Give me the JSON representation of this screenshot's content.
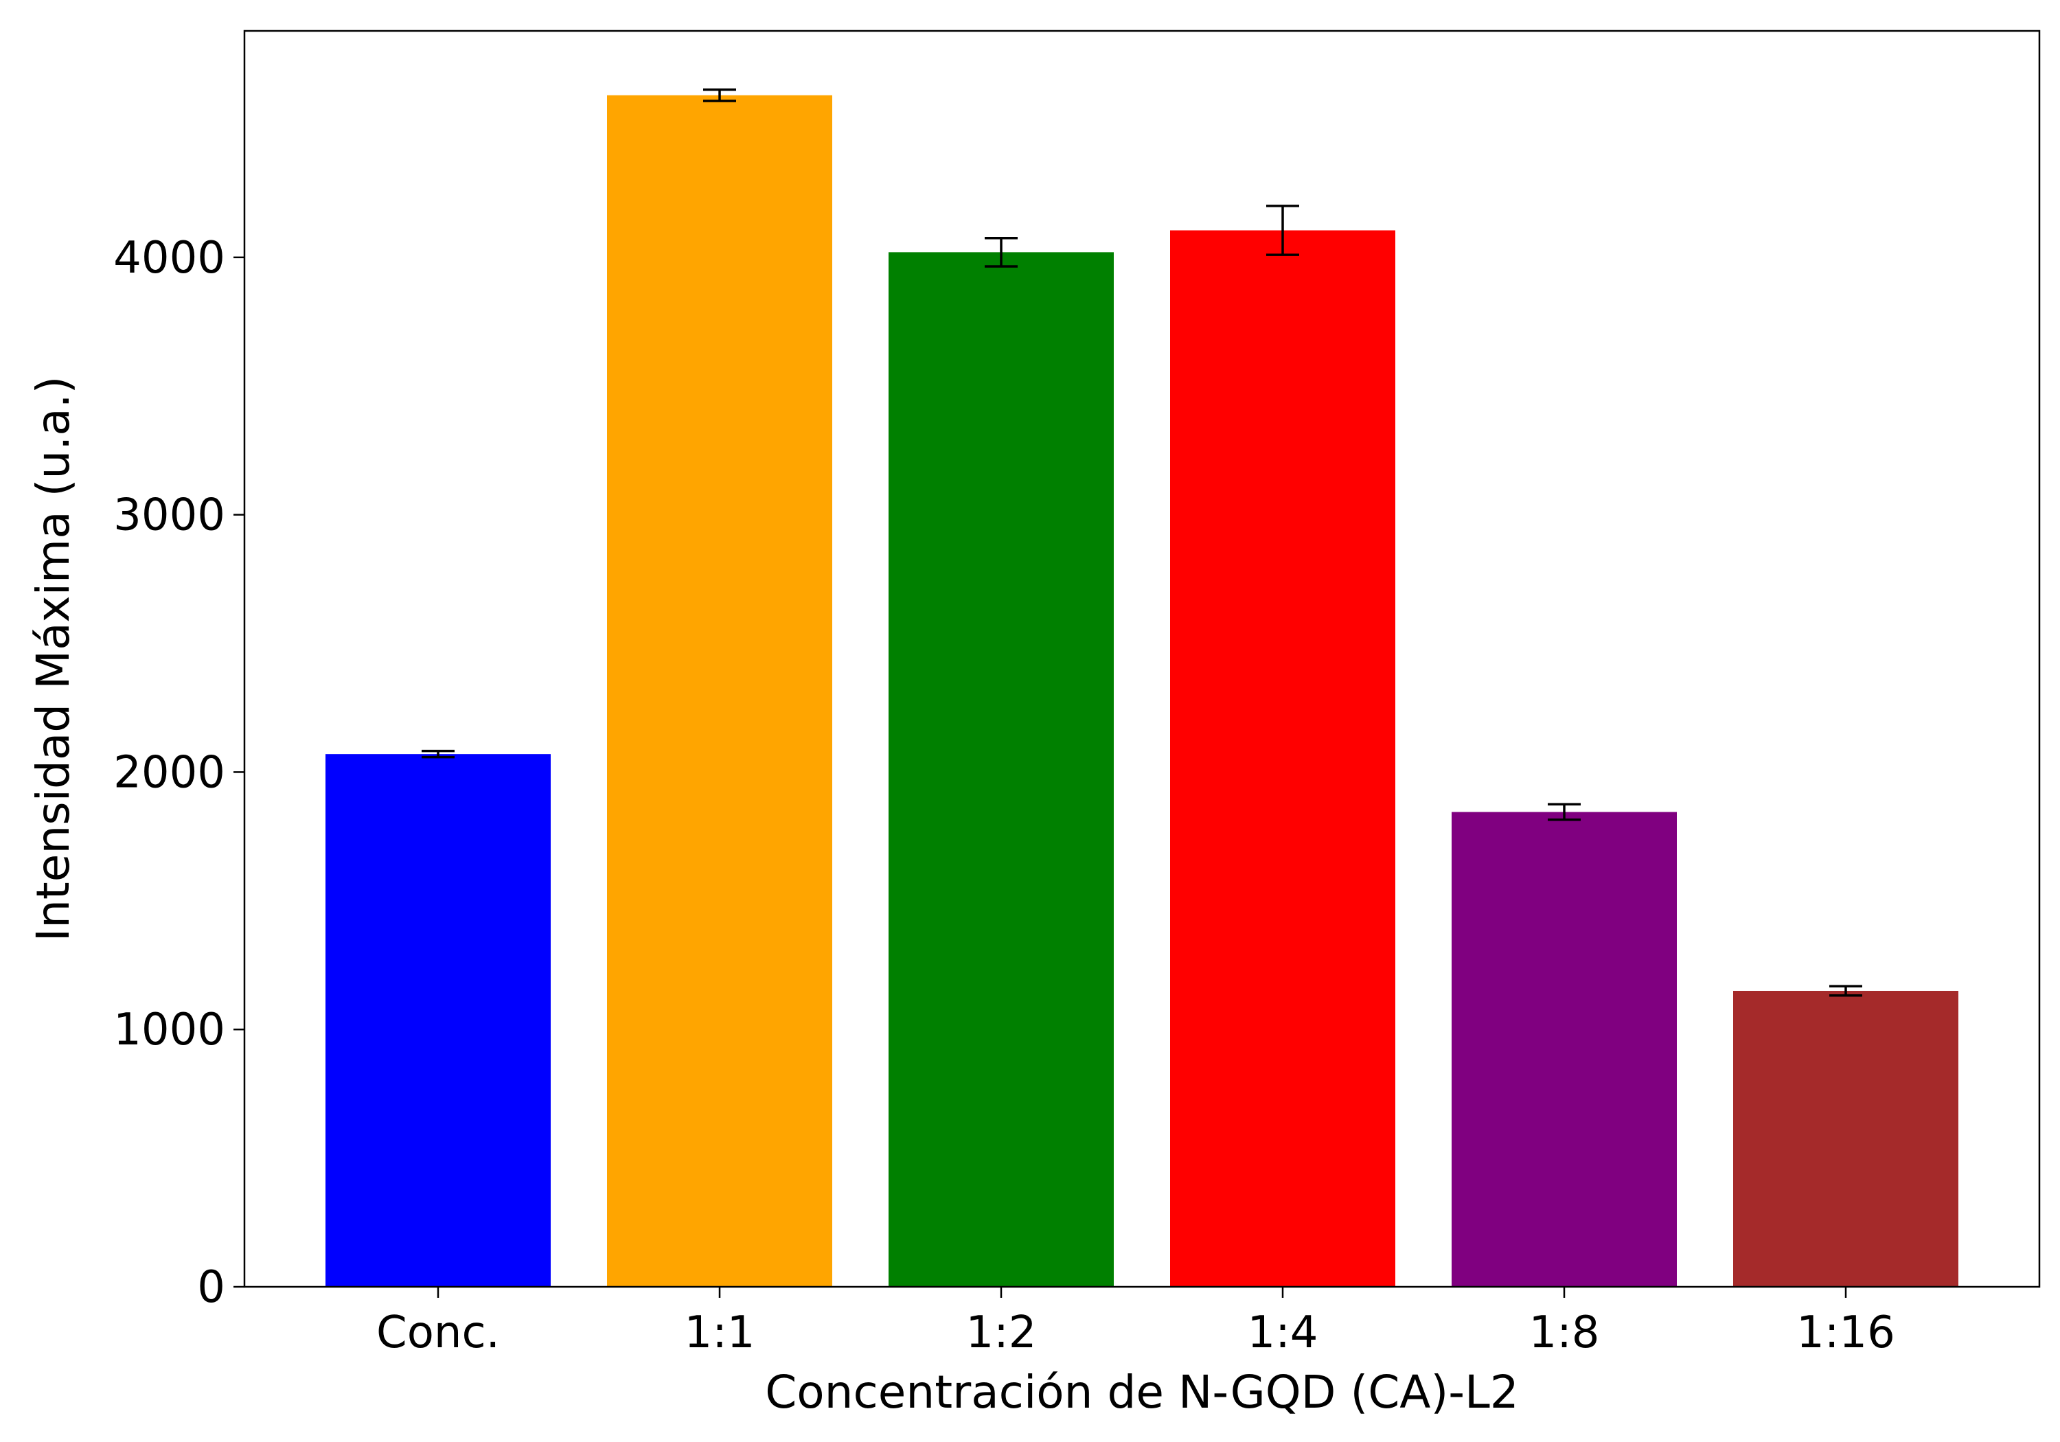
{
  "chart_data": {
    "type": "bar",
    "title": "",
    "xlabel": "Concentración de N-GQD (CA)-L2",
    "ylabel": "Intensidad Máxima (u.a.)",
    "categories": [
      "Conc.",
      "1:1",
      "1:2",
      "1:4",
      "1:8",
      "1:16"
    ],
    "values": [
      2070,
      4630,
      4020,
      4105,
      1845,
      1150
    ],
    "errors": [
      12,
      22,
      55,
      95,
      30,
      18
    ],
    "colors": [
      "#0000ff",
      "#ffa500",
      "#008000",
      "#ff0000",
      "#800080",
      "#a52a2a"
    ],
    "ylim": [
      0,
      4880
    ],
    "yticks": [
      0,
      1000,
      2000,
      3000,
      4000
    ],
    "ytick_labels": [
      "0",
      "1000",
      "2000",
      "3000",
      "4000"
    ],
    "grid": false,
    "legend": "none"
  }
}
